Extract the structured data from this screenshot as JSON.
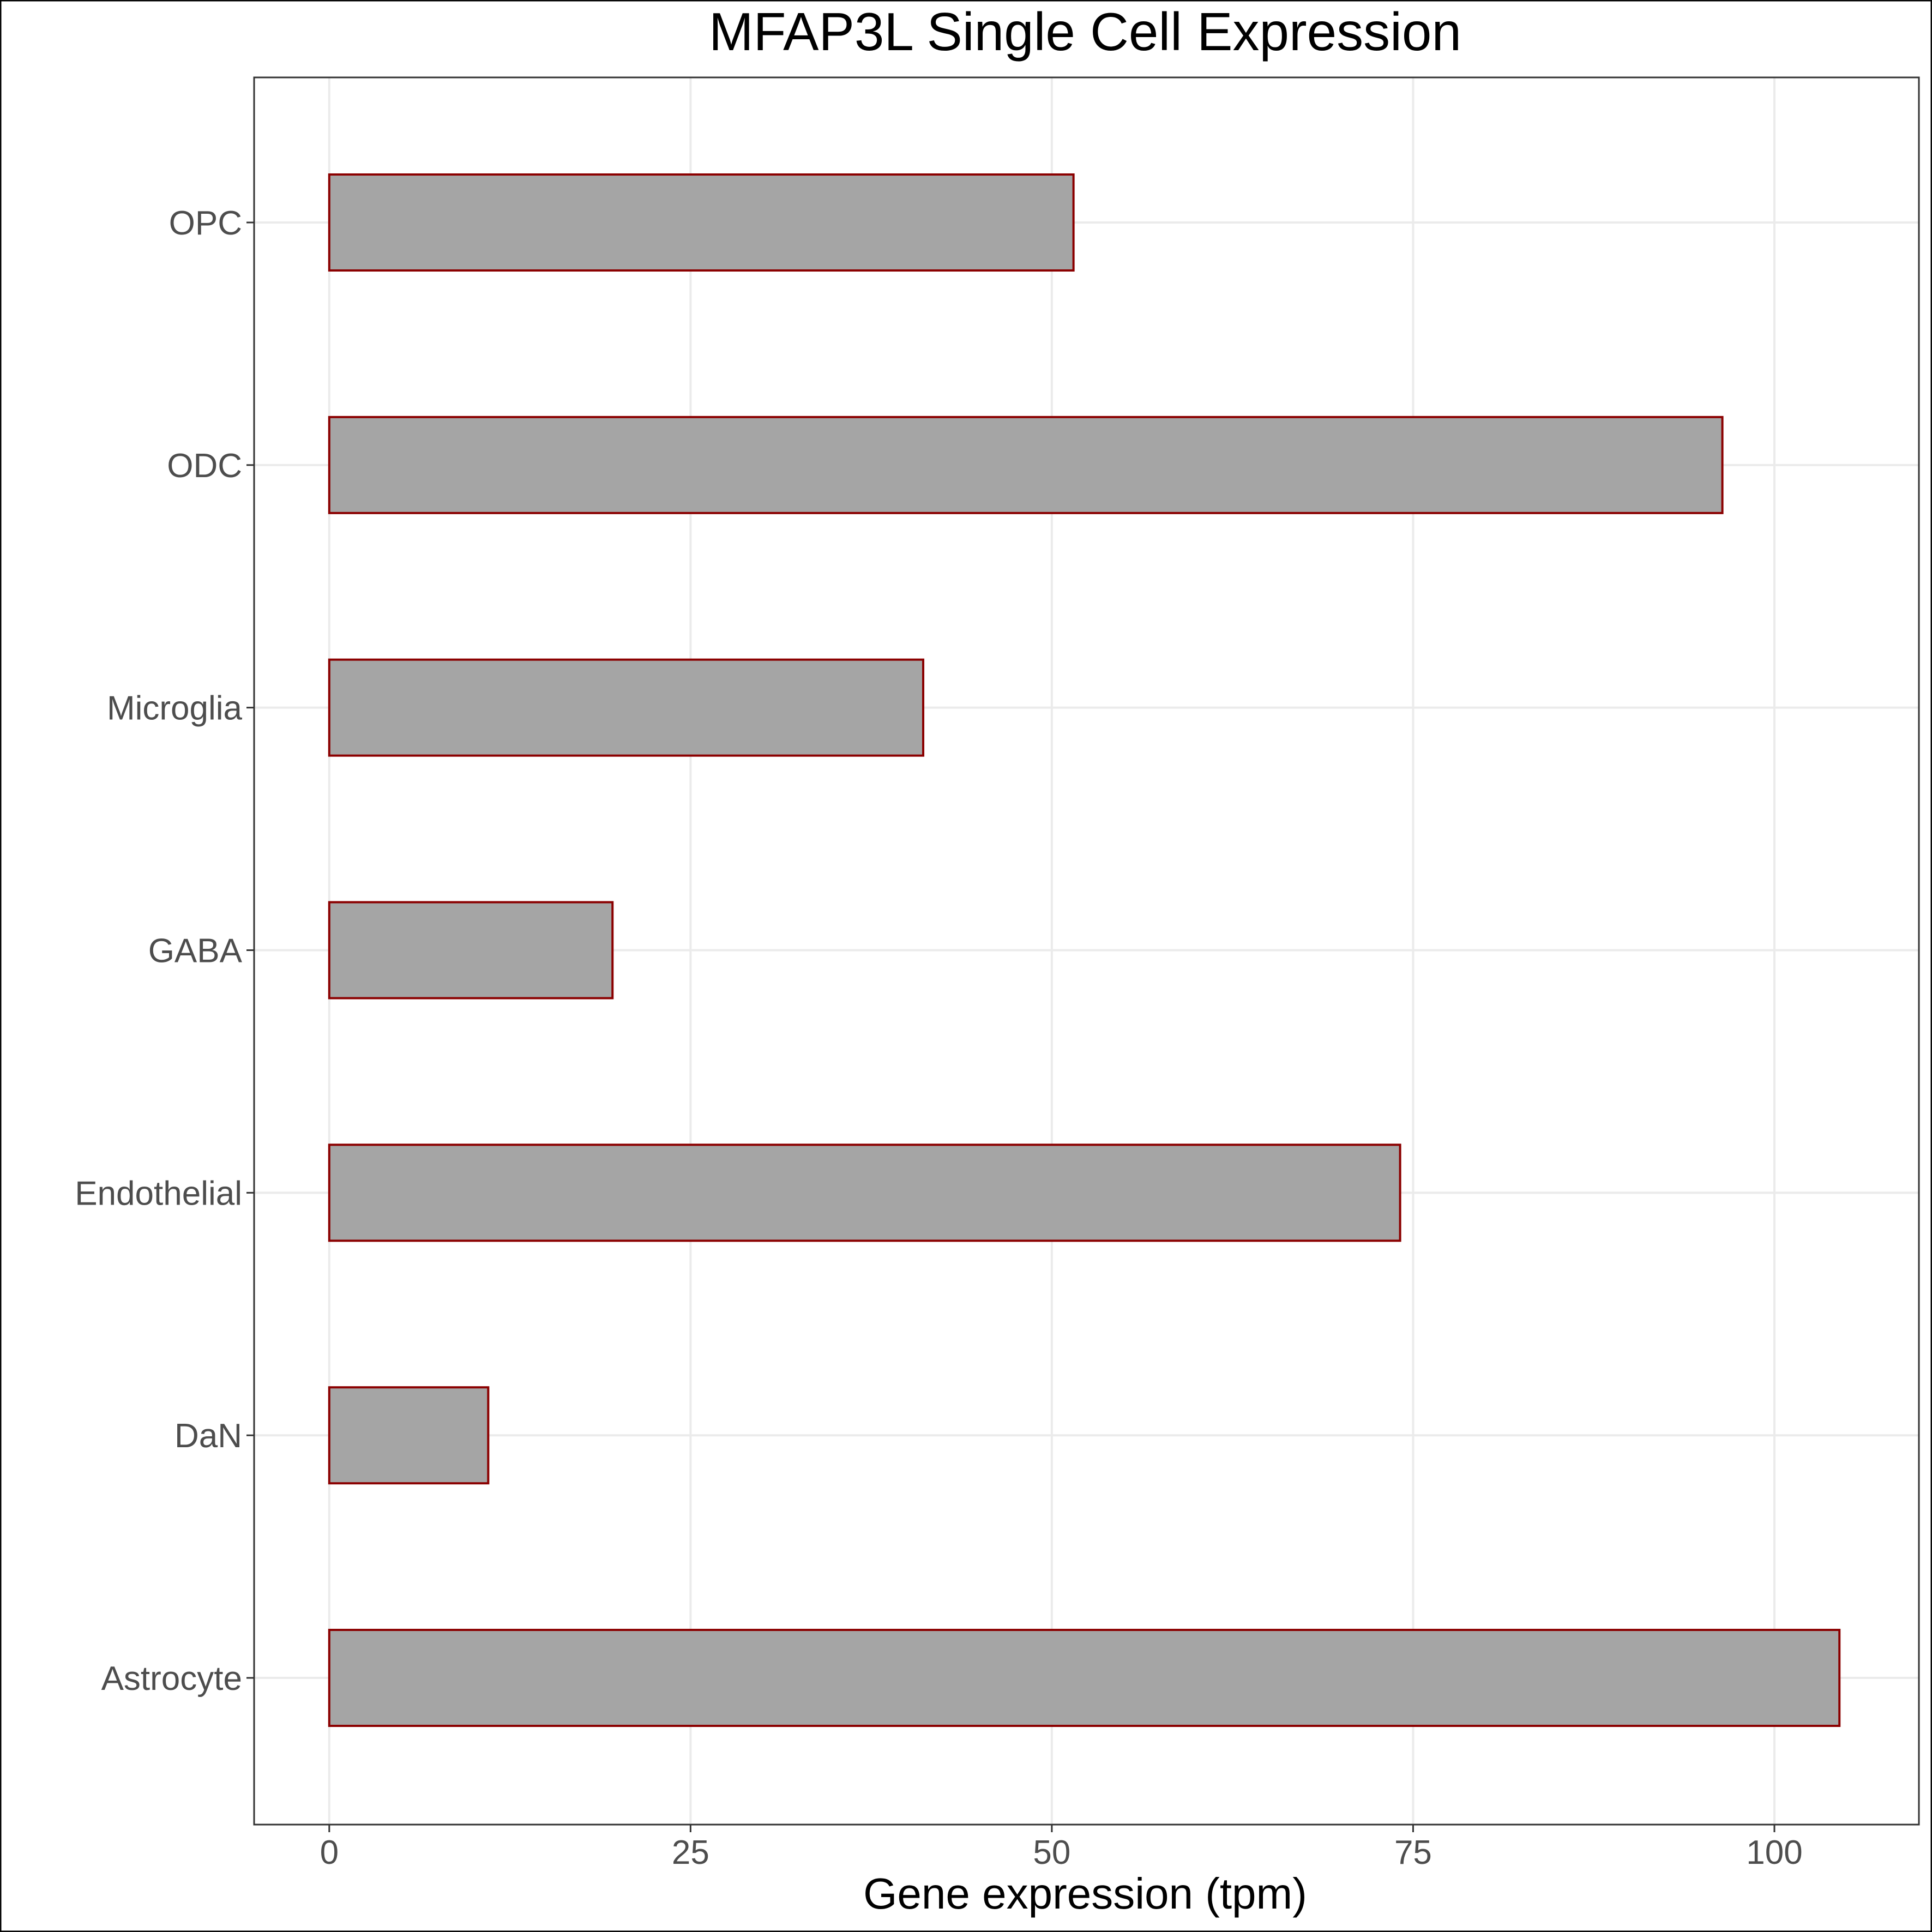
{
  "chart_data": {
    "type": "bar",
    "orientation": "horizontal",
    "title": "MFAP3L Single Cell Expression",
    "xlabel": "Gene expression (tpm)",
    "ylabel": "",
    "categories": [
      "Astrocyte",
      "DaN",
      "Endothelial",
      "GABA",
      "Microglia",
      "ODC",
      "OPC"
    ],
    "values": [
      104.5,
      11.0,
      74.1,
      19.6,
      41.1,
      96.4,
      51.5
    ],
    "xlim": [
      -5.2,
      110.0
    ],
    "xticks": [
      0,
      25,
      50,
      75,
      100
    ],
    "xtick_labels": [
      "0",
      "25",
      "50",
      "75",
      "100"
    ],
    "grid": true,
    "legend": "none",
    "colors": {
      "bar_fill": "#a5a5a5",
      "bar_stroke": "#8b0000",
      "grid": "#ebebeb",
      "panel_border": "#333333",
      "tick_text": "#4d4d4d"
    }
  }
}
